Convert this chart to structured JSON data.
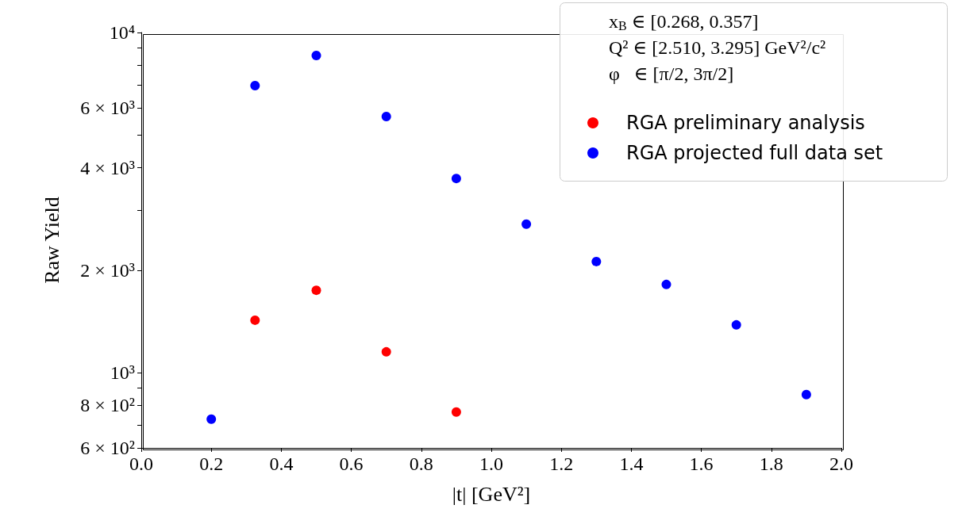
{
  "chart_data": {
    "type": "scatter",
    "xlabel": "|t| [GeV²]",
    "ylabel": "Raw Yield",
    "legend_title": "x$_{B}$ ∈ [0.268, 0.357]\nQ² ∈ [2.510, 3.295] GeV²/c²\nφ   ∈ [π/2, 3π/2]",
    "series": [
      {
        "name": "RGA preliminary analysis",
        "color": "#ff0000",
        "x": [
          0.325,
          0.5,
          0.7,
          0.9
        ],
        "values": [
          1425,
          1745,
          1150,
          765
        ]
      },
      {
        "name": "RGA projected full data set",
        "color": "#0000ff",
        "x": [
          0.2,
          0.325,
          0.5,
          0.7,
          0.9,
          1.1,
          1.3,
          1.5,
          1.7,
          1.9
        ],
        "values": [
          729,
          6980,
          8560,
          5660,
          3720,
          2730,
          2120,
          1815,
          1380,
          861
        ]
      }
    ],
    "log": "y",
    "xlim": [
      0,
      2
    ],
    "xticks": [
      {
        "value": 0,
        "label": "0.0"
      },
      0.2,
      0.4,
      0.6,
      0.8,
      {
        "value": 1,
        "label": "1.0"
      },
      1.2,
      1.4,
      1.6,
      1.8,
      {
        "value": 2,
        "label": "2.0"
      }
    ],
    "ylim": [
      600,
      10000
    ],
    "yticks": [
      {
        "value": 600,
        "label": "6 × 10²"
      },
      {
        "value": 700,
        "label": null
      },
      {
        "value": 800,
        "label": "8 × 10²"
      },
      {
        "value": 900,
        "label": null
      },
      {
        "value": 1000,
        "label": "10³"
      },
      {
        "value": 2000,
        "label": "2 × 10³"
      },
      {
        "value": 3000,
        "label": null
      },
      {
        "value": 4000,
        "label": "4 × 10³"
      },
      {
        "value": 5000,
        "label": null
      },
      {
        "value": 6000,
        "label": "6 × 10³"
      },
      {
        "value": 7000,
        "label": null
      },
      {
        "value": 8000,
        "label": null
      },
      {
        "value": 9000,
        "label": null
      },
      {
        "value": 10000,
        "label": "10⁴"
      }
    ],
    "grid": false,
    "legend": "top right",
    "marker": "circle"
  }
}
